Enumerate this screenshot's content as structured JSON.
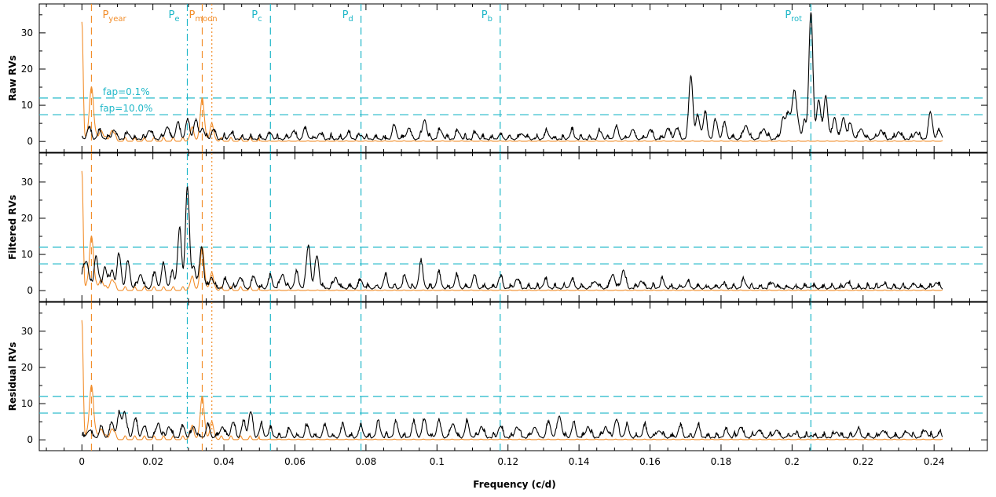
{
  "chart_data": {
    "type": "line",
    "x_axis": {
      "label": "Frequency (c/d)",
      "range": [
        -0.012,
        0.255
      ],
      "ticks": [
        0,
        0.02,
        0.04,
        0.06,
        0.08,
        0.1,
        0.12,
        0.14,
        0.16,
        0.18,
        0.2,
        0.22,
        0.24
      ],
      "tick_labels": [
        "0",
        "0.02",
        "0.04",
        "0.06",
        "0.08",
        "0.1",
        "0.12",
        "0.14",
        "0.16",
        "0.18",
        "0.2",
        "0.22",
        "0.24"
      ]
    },
    "y_axis": {
      "range": [
        -3,
        38
      ],
      "ticks": [
        0,
        10,
        20,
        30
      ],
      "tick_labels": [
        "0",
        "10",
        "20",
        "30"
      ]
    },
    "period_markers": [
      {
        "label": "P",
        "subscript": "year",
        "x": 0.0027,
        "color": "#f28e2b",
        "style": "dashed"
      },
      {
        "label": "P",
        "subscript": "e",
        "x": 0.0297,
        "color": "#1fb7c8",
        "style": "dashdot"
      },
      {
        "label": "P",
        "subscript": "moon",
        "x": 0.0339,
        "color": "#f28e2b",
        "style": "dashed"
      },
      {
        "label": "",
        "subscript": "",
        "x": 0.0366,
        "color": "#f28e2b",
        "style": "dotted"
      },
      {
        "label": "P",
        "subscript": "c",
        "x": 0.0531,
        "color": "#1fb7c8",
        "style": "dashed"
      },
      {
        "label": "P",
        "subscript": "d",
        "x": 0.0786,
        "color": "#1fb7c8",
        "style": "dashed"
      },
      {
        "label": "P",
        "subscript": "b",
        "x": 0.1178,
        "color": "#1fb7c8",
        "style": "dashed"
      },
      {
        "label": "P",
        "subscript": "rot",
        "x": 0.2053,
        "color": "#1fb7c8",
        "style": "dashed"
      }
    ],
    "fap_levels": [
      {
        "label": "fap=0.1%",
        "y": 12.0,
        "color": "#1fb7c8"
      },
      {
        "label": "fap=10.0%",
        "y": 7.4,
        "color": "#1fb7c8"
      }
    ],
    "window_peaks": [
      {
        "x": 0.0,
        "y": 33
      },
      {
        "x": 0.0027,
        "y": 15
      },
      {
        "x": 0.0054,
        "y": 3
      },
      {
        "x": 0.0085,
        "y": 3
      },
      {
        "x": 0.031,
        "y": 3
      },
      {
        "x": 0.0339,
        "y": 11
      },
      {
        "x": 0.0366,
        "y": 4
      }
    ],
    "panels": [
      {
        "ylabel": "Raw RVs",
        "peaks": [
          {
            "x": 0.002,
            "y": 3
          },
          {
            "x": 0.005,
            "y": 2
          },
          {
            "x": 0.009,
            "y": 2.5
          },
          {
            "x": 0.013,
            "y": 1.5
          },
          {
            "x": 0.019,
            "y": 2.5
          },
          {
            "x": 0.024,
            "y": 3.5
          },
          {
            "x": 0.027,
            "y": 4.5
          },
          {
            "x": 0.0297,
            "y": 5
          },
          {
            "x": 0.032,
            "y": 5
          },
          {
            "x": 0.0339,
            "y": 3
          },
          {
            "x": 0.037,
            "y": 2.5
          },
          {
            "x": 0.042,
            "y": 1.5
          },
          {
            "x": 0.0531,
            "y": 1.5
          },
          {
            "x": 0.0595,
            "y": 2
          },
          {
            "x": 0.063,
            "y": 2.5
          },
          {
            "x": 0.067,
            "y": 1.5
          },
          {
            "x": 0.075,
            "y": 1.5
          },
          {
            "x": 0.0786,
            "y": 1
          },
          {
            "x": 0.088,
            "y": 3.5
          },
          {
            "x": 0.092,
            "y": 3
          },
          {
            "x": 0.0965,
            "y": 5.5
          },
          {
            "x": 0.101,
            "y": 2.5
          },
          {
            "x": 0.106,
            "y": 2
          },
          {
            "x": 0.111,
            "y": 1.5
          },
          {
            "x": 0.1178,
            "y": 1
          },
          {
            "x": 0.124,
            "y": 1.5
          },
          {
            "x": 0.131,
            "y": 2
          },
          {
            "x": 0.138,
            "y": 2
          },
          {
            "x": 0.146,
            "y": 2
          },
          {
            "x": 0.1505,
            "y": 3
          },
          {
            "x": 0.155,
            "y": 2.5
          },
          {
            "x": 0.16,
            "y": 2.5
          },
          {
            "x": 0.165,
            "y": 3
          },
          {
            "x": 0.1675,
            "y": 3
          },
          {
            "x": 0.1715,
            "y": 17.5
          },
          {
            "x": 0.1735,
            "y": 6
          },
          {
            "x": 0.1755,
            "y": 7
          },
          {
            "x": 0.1785,
            "y": 5
          },
          {
            "x": 0.181,
            "y": 4
          },
          {
            "x": 0.187,
            "y": 4
          },
          {
            "x": 0.192,
            "y": 3
          },
          {
            "x": 0.1975,
            "y": 6
          },
          {
            "x": 0.199,
            "y": 7
          },
          {
            "x": 0.2015,
            "y": 5
          },
          {
            "x": 0.2035,
            "y": 4
          },
          {
            "x": 0.2005,
            "y": 12
          },
          {
            "x": 0.2053,
            "y": 35
          },
          {
            "x": 0.2075,
            "y": 11
          },
          {
            "x": 0.2095,
            "y": 12
          },
          {
            "x": 0.212,
            "y": 6
          },
          {
            "x": 0.2145,
            "y": 6
          },
          {
            "x": 0.2165,
            "y": 4
          },
          {
            "x": 0.2195,
            "y": 3
          },
          {
            "x": 0.225,
            "y": 2.5
          },
          {
            "x": 0.23,
            "y": 2
          },
          {
            "x": 0.235,
            "y": 2
          },
          {
            "x": 0.239,
            "y": 7
          },
          {
            "x": 0.2415,
            "y": 2
          }
        ]
      },
      {
        "ylabel": "Filtered RVs",
        "peaks": [
          {
            "x": 0.0005,
            "y": 5
          },
          {
            "x": 0.0015,
            "y": 6
          },
          {
            "x": 0.004,
            "y": 9
          },
          {
            "x": 0.0065,
            "y": 6
          },
          {
            "x": 0.0085,
            "y": 5
          },
          {
            "x": 0.0105,
            "y": 9
          },
          {
            "x": 0.013,
            "y": 7
          },
          {
            "x": 0.0165,
            "y": 4
          },
          {
            "x": 0.0205,
            "y": 4
          },
          {
            "x": 0.023,
            "y": 6.5
          },
          {
            "x": 0.0255,
            "y": 4
          },
          {
            "x": 0.0275,
            "y": 16
          },
          {
            "x": 0.0297,
            "y": 28
          },
          {
            "x": 0.0315,
            "y": 6
          },
          {
            "x": 0.0337,
            "y": 11.5
          },
          {
            "x": 0.0365,
            "y": 3
          },
          {
            "x": 0.0405,
            "y": 2
          },
          {
            "x": 0.0445,
            "y": 3
          },
          {
            "x": 0.0485,
            "y": 3
          },
          {
            "x": 0.0531,
            "y": 3
          },
          {
            "x": 0.0565,
            "y": 4
          },
          {
            "x": 0.0605,
            "y": 4
          },
          {
            "x": 0.0638,
            "y": 12
          },
          {
            "x": 0.0662,
            "y": 9
          },
          {
            "x": 0.0715,
            "y": 3
          },
          {
            "x": 0.0786,
            "y": 2
          },
          {
            "x": 0.0855,
            "y": 3
          },
          {
            "x": 0.091,
            "y": 3
          },
          {
            "x": 0.0955,
            "y": 7
          },
          {
            "x": 0.1005,
            "y": 4
          },
          {
            "x": 0.1055,
            "y": 3
          },
          {
            "x": 0.1105,
            "y": 3
          },
          {
            "x": 0.1178,
            "y": 3
          },
          {
            "x": 0.1225,
            "y": 2.5
          },
          {
            "x": 0.1305,
            "y": 2
          },
          {
            "x": 0.138,
            "y": 2
          },
          {
            "x": 0.1445,
            "y": 2
          },
          {
            "x": 0.1495,
            "y": 4
          },
          {
            "x": 0.1525,
            "y": 5
          },
          {
            "x": 0.1575,
            "y": 2
          },
          {
            "x": 0.1635,
            "y": 2
          },
          {
            "x": 0.1705,
            "y": 1.5
          },
          {
            "x": 0.1805,
            "y": 1
          },
          {
            "x": 0.1865,
            "y": 2
          },
          {
            "x": 0.1945,
            "y": 1.5
          },
          {
            "x": 0.2053,
            "y": 0.5
          },
          {
            "x": 0.2155,
            "y": 1.5
          },
          {
            "x": 0.2255,
            "y": 1
          },
          {
            "x": 0.2345,
            "y": 1
          },
          {
            "x": 0.2405,
            "y": 1.5
          }
        ]
      },
      {
        "ylabel": "Residual RVs",
        "peaks": [
          {
            "x": 0.002,
            "y": 2
          },
          {
            "x": 0.0055,
            "y": 2.5
          },
          {
            "x": 0.0085,
            "y": 4
          },
          {
            "x": 0.0105,
            "y": 6
          },
          {
            "x": 0.012,
            "y": 7
          },
          {
            "x": 0.015,
            "y": 5
          },
          {
            "x": 0.0175,
            "y": 3
          },
          {
            "x": 0.0215,
            "y": 4
          },
          {
            "x": 0.0245,
            "y": 3
          },
          {
            "x": 0.0285,
            "y": 3
          },
          {
            "x": 0.0315,
            "y": 3
          },
          {
            "x": 0.0355,
            "y": 3
          },
          {
            "x": 0.0395,
            "y": 3
          },
          {
            "x": 0.0425,
            "y": 4
          },
          {
            "x": 0.0455,
            "y": 4
          },
          {
            "x": 0.0475,
            "y": 7
          },
          {
            "x": 0.0505,
            "y": 3
          },
          {
            "x": 0.0531,
            "y": 2
          },
          {
            "x": 0.0585,
            "y": 2
          },
          {
            "x": 0.0635,
            "y": 3
          },
          {
            "x": 0.0685,
            "y": 3
          },
          {
            "x": 0.0735,
            "y": 3
          },
          {
            "x": 0.0786,
            "y": 3
          },
          {
            "x": 0.0835,
            "y": 4
          },
          {
            "x": 0.0885,
            "y": 4
          },
          {
            "x": 0.0935,
            "y": 4
          },
          {
            "x": 0.0965,
            "y": 5
          },
          {
            "x": 0.1005,
            "y": 4.5
          },
          {
            "x": 0.1045,
            "y": 4
          },
          {
            "x": 0.1085,
            "y": 4
          },
          {
            "x": 0.1125,
            "y": 3
          },
          {
            "x": 0.1178,
            "y": 3
          },
          {
            "x": 0.1225,
            "y": 3
          },
          {
            "x": 0.1275,
            "y": 3
          },
          {
            "x": 0.1315,
            "y": 4
          },
          {
            "x": 0.1345,
            "y": 6
          },
          {
            "x": 0.1385,
            "y": 3.5
          },
          {
            "x": 0.1425,
            "y": 3
          },
          {
            "x": 0.1475,
            "y": 3
          },
          {
            "x": 0.1505,
            "y": 5
          },
          {
            "x": 0.1535,
            "y": 3
          },
          {
            "x": 0.1585,
            "y": 3
          },
          {
            "x": 0.1625,
            "y": 2
          },
          {
            "x": 0.1685,
            "y": 3
          },
          {
            "x": 0.1735,
            "y": 3
          },
          {
            "x": 0.1815,
            "y": 2
          },
          {
            "x": 0.1855,
            "y": 3
          },
          {
            "x": 0.1905,
            "y": 2
          },
          {
            "x": 0.1955,
            "y": 2
          },
          {
            "x": 0.2005,
            "y": 1
          },
          {
            "x": 0.2053,
            "y": 0.5
          },
          {
            "x": 0.2125,
            "y": 1.5
          },
          {
            "x": 0.2185,
            "y": 2
          },
          {
            "x": 0.2255,
            "y": 2
          },
          {
            "x": 0.2325,
            "y": 1.5
          },
          {
            "x": 0.2375,
            "y": 2
          },
          {
            "x": 0.2415,
            "y": 1
          }
        ]
      }
    ]
  }
}
